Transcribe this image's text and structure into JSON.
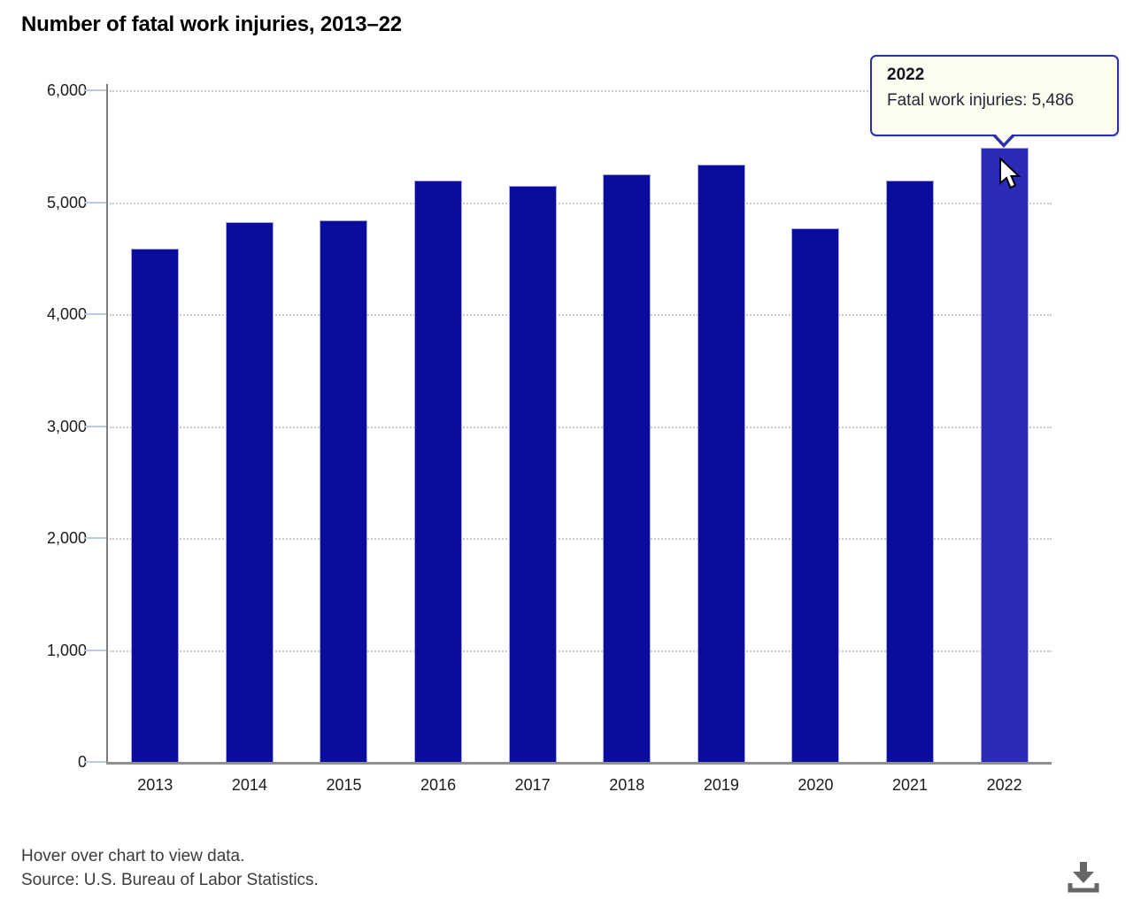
{
  "title": "Number of fatal work injuries, 2013–22",
  "chart_data": {
    "type": "bar",
    "title": "Number of fatal work injuries, 2013–22",
    "categories": [
      "2013",
      "2014",
      "2015",
      "2016",
      "2017",
      "2018",
      "2019",
      "2020",
      "2021",
      "2022"
    ],
    "series": [
      {
        "name": "Fatal work injuries",
        "values": [
          4585,
          4821,
          4836,
          5190,
          5147,
          5250,
          5333,
          4764,
          5190,
          5486
        ]
      }
    ],
    "ylim": [
      0,
      6000
    ],
    "ytick_interval": 1000,
    "ytick_labels": [
      "0",
      "1,000",
      "2,000",
      "3,000",
      "4,000",
      "5,000",
      "6,000"
    ],
    "xlabel": "",
    "ylabel": "",
    "grid": "horizontal-dotted",
    "legend": "none",
    "bar_color": "#0b0b9e",
    "bar_hover_color": "#2b2bb8",
    "highlighted_category": "2022"
  },
  "tooltip": {
    "year": "2022",
    "text": "Fatal work injuries: 5,486",
    "background": "#fcfcf0",
    "border_color": "#2a2fae"
  },
  "footer": {
    "line1": "Hover over chart to view data.",
    "line2": "Source: U.S. Bureau of Labor Statistics."
  },
  "icons": {
    "download": "download-icon",
    "cursor": "mouse-cursor"
  }
}
